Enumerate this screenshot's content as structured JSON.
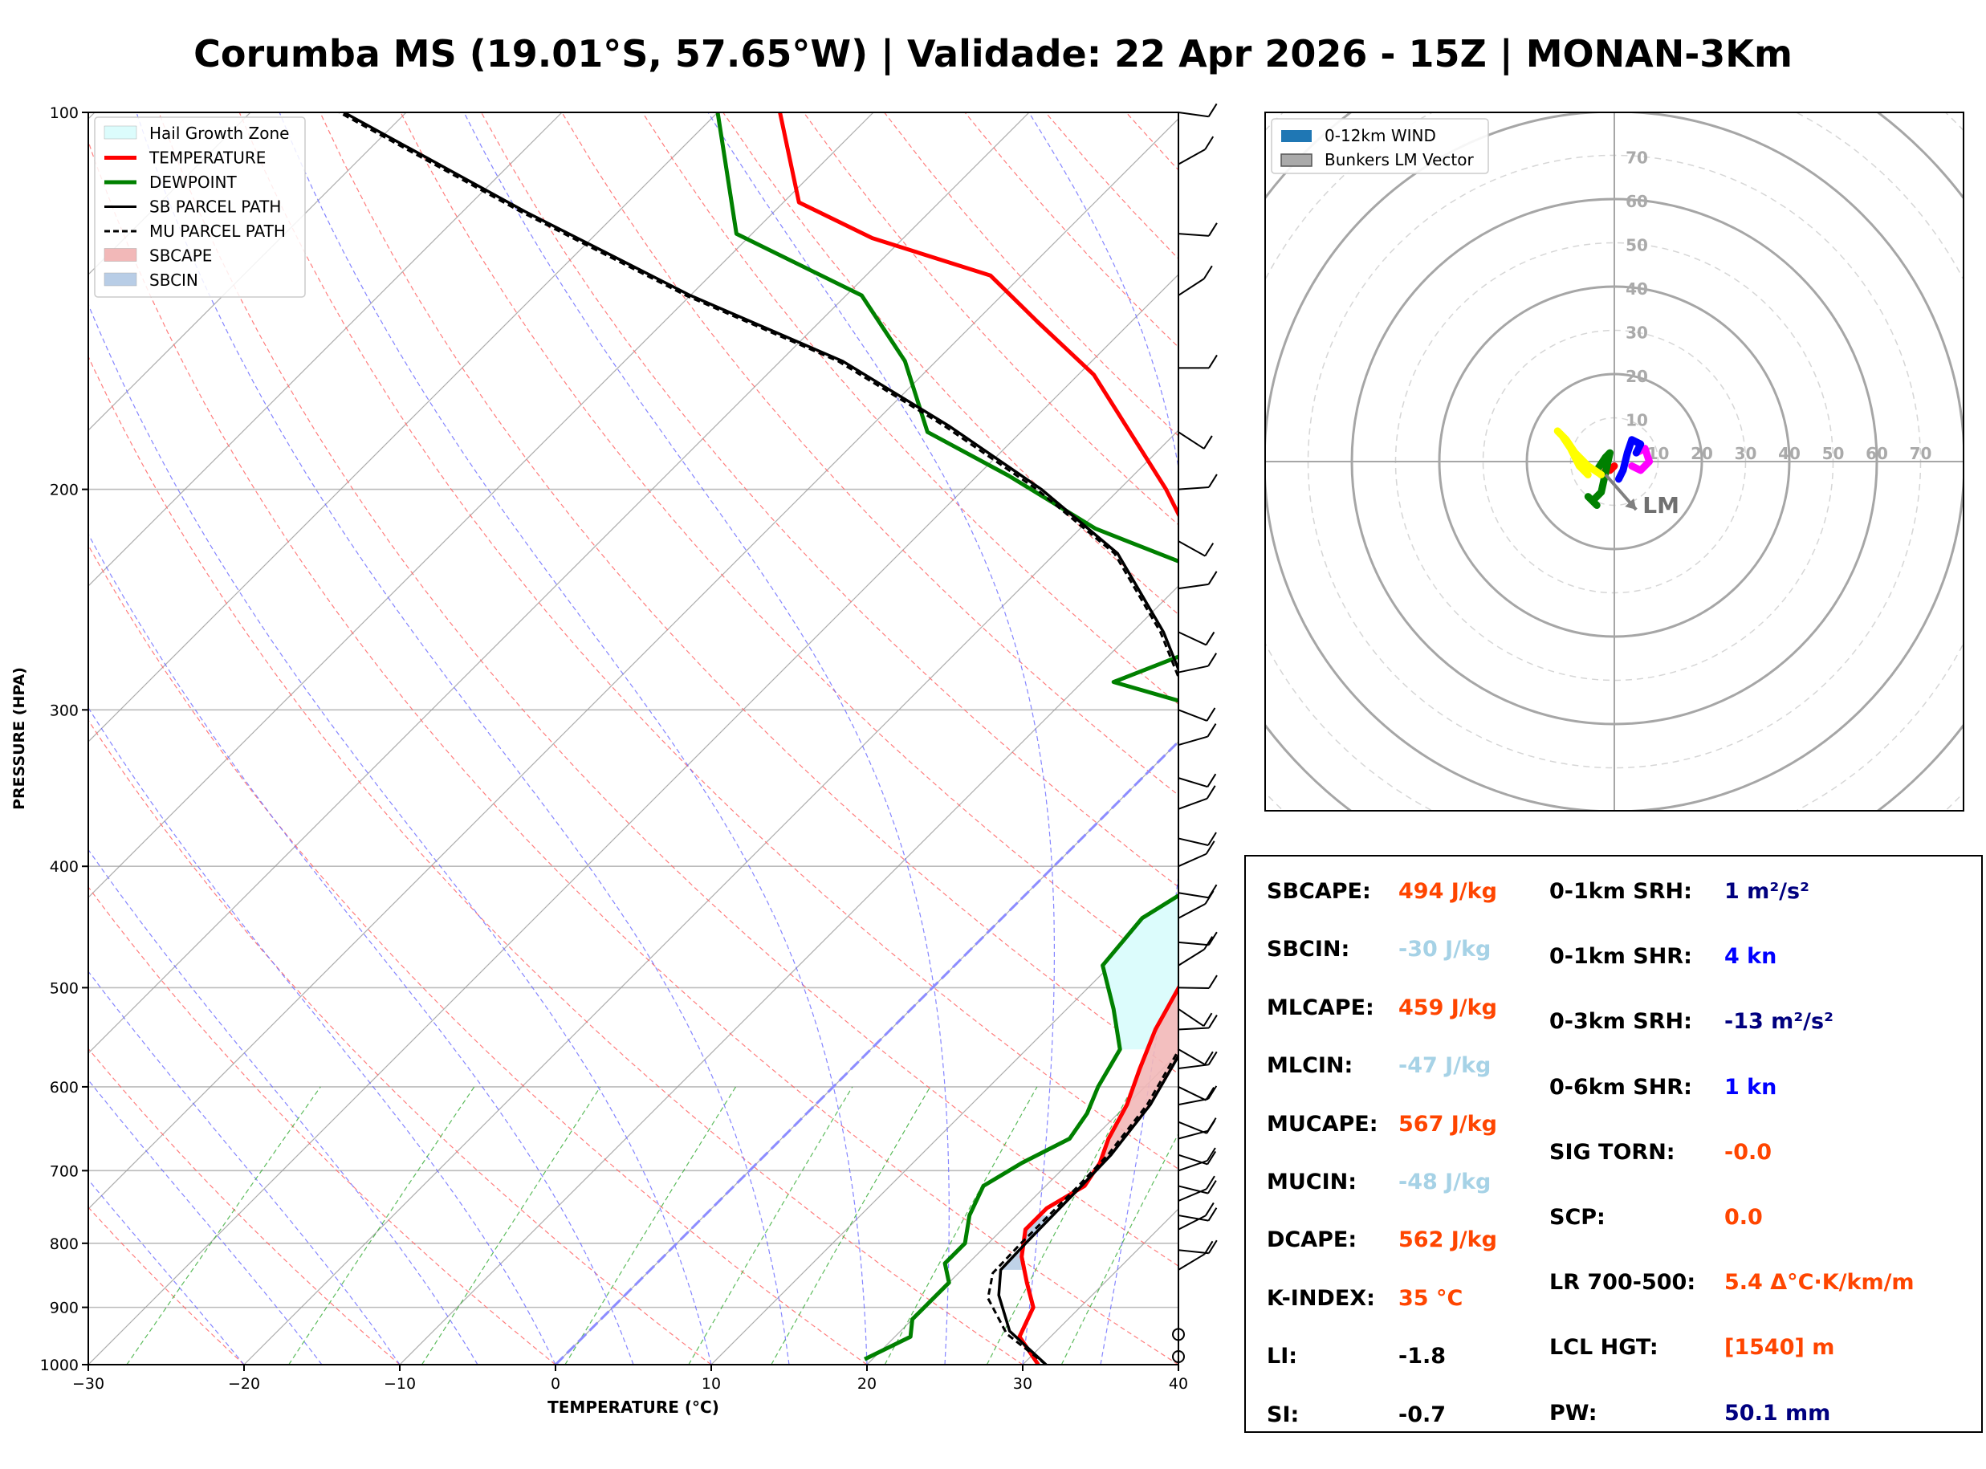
{
  "title": "Corumba MS (19.01°S, 57.65°W) | Validade: 22 Apr 2026 - 15Z | MONAN-3Km",
  "colors": {
    "temperature": "#ff0000",
    "dewpoint": "#008000",
    "parcel": "#000000",
    "sbcape_fill": "#f2b8b8",
    "sbcin_fill": "#b8cde6",
    "hail_zone": "#dcfcfc",
    "dry_adiabat": "#ff6666",
    "moist_adiabat": "#6666ff",
    "mixing_ratio": "#33aa33",
    "isotherm": "#999999",
    "freezing_isotherm": "#8c8cff"
  },
  "skewt": {
    "ylabel": "PRESSURE (HPA)",
    "xlabel": "TEMPERATURE (°C)",
    "legend": [
      {
        "label": "Hail Growth Zone",
        "kind": "fill",
        "icon": "hail-zone-swatch"
      },
      {
        "label": "TEMPERATURE",
        "kind": "line",
        "icon": "red-line"
      },
      {
        "label": "DEWPOINT",
        "kind": "line",
        "icon": "green-line"
      },
      {
        "label": "SB PARCEL PATH",
        "kind": "line",
        "icon": "black-line"
      },
      {
        "label": "MU PARCEL PATH",
        "kind": "dashed",
        "icon": "black-dashed-line"
      },
      {
        "label": "SBCAPE",
        "kind": "fill",
        "icon": "sbcape-swatch"
      },
      {
        "label": "SBCIN",
        "kind": "fill",
        "icon": "sbcin-swatch"
      }
    ]
  },
  "chart_data": [
    {
      "type": "line",
      "chart": "skew-t log-p",
      "xlabel": "TEMPERATURE (°C)",
      "ylabel": "PRESSURE (HPA)",
      "xlim": [
        -30,
        40
      ],
      "ylim": [
        1000,
        100
      ],
      "yscale": "log",
      "xticks": [
        -30,
        -20,
        -10,
        0,
        10,
        20,
        30,
        40
      ],
      "yticks": [
        1000,
        900,
        800,
        700,
        600,
        500,
        400,
        300,
        200,
        100
      ],
      "grid": true,
      "legend_position": "top-left",
      "series": [
        {
          "name": "TEMPERATURE",
          "points": [
            [
              31,
              1000
            ],
            [
              28,
              950
            ],
            [
              27,
              900
            ],
            [
              25,
              860
            ],
            [
              23,
              820
            ],
            [
              21.5,
              780
            ],
            [
              21.5,
              750
            ],
            [
              22.5,
              720
            ],
            [
              22,
              690
            ],
            [
              21,
              660
            ],
            [
              20,
              620
            ],
            [
              18.5,
              580
            ],
            [
              17,
              540
            ],
            [
              15.5,
              490
            ],
            [
              14,
              450
            ],
            [
              13,
              420
            ],
            [
              12,
              400
            ],
            [
              9,
              370
            ],
            [
              6,
              340
            ],
            [
              3,
              310
            ],
            [
              0,
              280
            ],
            [
              -3,
              260
            ],
            [
              -7,
              240
            ],
            [
              -12,
              220
            ],
            [
              -17,
              200
            ],
            [
              -23,
              180
            ],
            [
              -29,
              162
            ],
            [
              -36,
              147
            ],
            [
              -42,
              135
            ],
            [
              -52,
              126
            ],
            [
              -59,
              118
            ],
            [
              -66,
              100
            ]
          ]
        },
        {
          "name": "DEWPOINT",
          "points": [
            [
              19.5,
              990
            ],
            [
              21,
              950
            ],
            [
              20,
              920
            ],
            [
              20,
              900
            ],
            [
              20,
              860
            ],
            [
              18.5,
              830
            ],
            [
              18.5,
              800
            ],
            [
              17,
              760
            ],
            [
              16,
              720
            ],
            [
              17,
              690
            ],
            [
              18.5,
              660
            ],
            [
              18,
              630
            ],
            [
              17,
              600
            ],
            [
              16,
              560
            ],
            [
              13,
              520
            ],
            [
              9.5,
              480
            ],
            [
              9,
              440
            ],
            [
              10.5,
              410
            ],
            [
              11,
              385
            ],
            [
              9,
              370
            ],
            [
              6,
              350
            ],
            [
              2,
              325
            ],
            [
              0,
              300
            ],
            [
              -8,
              285
            ],
            [
              -3,
              260
            ],
            [
              -8,
              235
            ],
            [
              -19,
              215
            ],
            [
              -28,
              195
            ],
            [
              -36,
              180
            ],
            [
              -42,
              158
            ],
            [
              -49,
              140
            ],
            [
              -61,
              125
            ],
            [
              -70,
              100
            ]
          ]
        },
        {
          "name": "SB PARCEL PATH",
          "points": [
            [
              31.5,
              1000
            ],
            [
              27,
              940
            ],
            [
              24,
              880
            ],
            [
              22.5,
              840
            ],
            [
              22.4,
              800
            ],
            [
              22.3,
              720
            ],
            [
              22.2,
              680
            ],
            [
              21.5,
              620
            ],
            [
              20,
              560
            ],
            [
              17.5,
              500
            ],
            [
              14,
              440
            ],
            [
              10,
              390
            ],
            [
              5,
              345
            ],
            [
              -1,
              300
            ],
            [
              -8,
              260
            ],
            [
              -16,
              225
            ],
            [
              -25,
              200
            ],
            [
              -35,
              178
            ],
            [
              -46,
              158
            ],
            [
              -60,
              140
            ],
            [
              -76,
              120
            ],
            [
              -94,
              100
            ]
          ]
        },
        {
          "name": "MU PARCEL PATH",
          "points": [
            [
              31.5,
              1000
            ],
            [
              27,
              945
            ],
            [
              23.5,
              885
            ],
            [
              22.2,
              845
            ],
            [
              22.1,
              800
            ],
            [
              22.1,
              720
            ],
            [
              22,
              680
            ],
            [
              21.3,
              620
            ],
            [
              19.8,
              560
            ],
            [
              17.3,
              500
            ],
            [
              13.8,
              440
            ],
            [
              9.8,
              390
            ],
            [
              4.8,
              345
            ],
            [
              -1.2,
              300
            ],
            [
              -8.2,
              260
            ],
            [
              -16.2,
              225
            ],
            [
              -25.3,
              200
            ],
            [
              -35.3,
              178
            ],
            [
              -46.3,
              158
            ],
            [
              -60.3,
              140
            ],
            [
              -76.3,
              120
            ],
            [
              -94.3,
              100
            ]
          ]
        }
      ],
      "regions": [
        {
          "name": "SBCAPE",
          "from_hPa": 720,
          "to_hPa": 380
        },
        {
          "name": "SBCIN",
          "from_hPa": 840,
          "to_hPa": 760
        },
        {
          "name": "Hail Growth Zone",
          "from_hPa": 560,
          "to_hPa": 390
        }
      ],
      "freezing_level_line": true
    },
    {
      "type": "scatter",
      "chart": "hodograph",
      "legend": [
        "0-12km WIND",
        "Bunkers LM Vector"
      ],
      "legend_position": "top-left",
      "ring_labels": [
        10,
        20,
        30,
        40,
        50,
        60,
        70
      ],
      "annotation": "LM",
      "segments": [
        {
          "name": "magenta",
          "color": "#ff00ff",
          "points": [
            [
              4,
              -1
            ],
            [
              6,
              -2
            ],
            [
              8,
              0
            ],
            [
              7,
              3
            ],
            [
              5,
              2
            ]
          ]
        },
        {
          "name": "blue",
          "color": "#0000ff",
          "points": [
            [
              1,
              -4
            ],
            [
              2,
              -2
            ],
            [
              3,
              2
            ],
            [
              4,
              5
            ],
            [
              6,
              4
            ],
            [
              5,
              2
            ]
          ]
        },
        {
          "name": "red",
          "color": "#ff0000",
          "points": [
            [
              0,
              -1
            ],
            [
              -1,
              -2
            ],
            [
              -2,
              -2
            ]
          ]
        },
        {
          "name": "green",
          "color": "#008000",
          "points": [
            [
              -3,
              -3
            ],
            [
              -4,
              -2
            ],
            [
              -2,
              1
            ],
            [
              -1,
              2
            ],
            [
              -3,
              -7
            ],
            [
              -5,
              -9
            ],
            [
              -4,
              -10
            ],
            [
              -6,
              -8
            ]
          ]
        },
        {
          "name": "yellow",
          "color": "#ffff00",
          "points": [
            [
              -6,
              -3
            ],
            [
              -8,
              -1
            ],
            [
              -10,
              3
            ],
            [
              -12,
              6
            ],
            [
              -13,
              7
            ],
            [
              -11,
              5
            ],
            [
              -9,
              2
            ],
            [
              -6,
              -1
            ],
            [
              -3,
              -3
            ]
          ]
        }
      ],
      "bunkers_lm": [
        5,
        -11
      ]
    }
  ],
  "hodograph": {
    "legend": [
      {
        "label": "0-12km WIND",
        "icon": "wind-swatch"
      },
      {
        "label": "Bunkers LM Vector",
        "icon": "lm-swatch"
      }
    ],
    "ring_values": [
      "10",
      "20",
      "30",
      "40",
      "50",
      "60",
      "70"
    ],
    "lm_label": "LM"
  },
  "indices": {
    "left": [
      {
        "label": "SBCAPE:",
        "value": "494 J/kg",
        "color": "#ff4500"
      },
      {
        "label": "SBCIN:",
        "value": "-30 J/kg",
        "color": "#a6d2e6"
      },
      {
        "label": "MLCAPE:",
        "value": "459 J/kg",
        "color": "#ff4500"
      },
      {
        "label": "MLCIN:",
        "value": "-47 J/kg",
        "color": "#a6d2e6"
      },
      {
        "label": "MUCAPE:",
        "value": "567 J/kg",
        "color": "#ff4500"
      },
      {
        "label": "MUCIN:",
        "value": "-48 J/kg",
        "color": "#a6d2e6"
      },
      {
        "label": "DCAPE:",
        "value": "562 J/kg",
        "color": "#ff4500"
      },
      {
        "label": "K-INDEX:",
        "value": "35 °C",
        "color": "#ff4500"
      },
      {
        "label": "LI:",
        "value": "-1.8",
        "color": "#000000"
      },
      {
        "label": "SI:",
        "value": "-0.7",
        "color": "#000000"
      }
    ],
    "right": [
      {
        "label": "0-1km SRH:",
        "value": "1 m²/s²",
        "color": "#00007f"
      },
      {
        "label": "0-1km SHR:",
        "value": "4 kn",
        "color": "#0000ff"
      },
      {
        "label": "0-3km SRH:",
        "value": "-13 m²/s²",
        "color": "#00007f"
      },
      {
        "label": "0-6km SHR:",
        "value": "1 kn",
        "color": "#0000ff"
      },
      {
        "label": "SIG TORN:",
        "value": "-0.0",
        "color": "#ff4500"
      },
      {
        "label": "SCP:",
        "value": "0.0",
        "color": "#ff4500"
      },
      {
        "label": "LR 700-500:",
        "value": "5.4 Δ°C·K/km/m",
        "color": "#ff4500"
      },
      {
        "label": "LCL HGT:",
        "value": "[1540] m",
        "color": "#ff4500"
      },
      {
        "label": "PW:",
        "value": "50.1 mm",
        "color": "#00007f"
      }
    ]
  }
}
